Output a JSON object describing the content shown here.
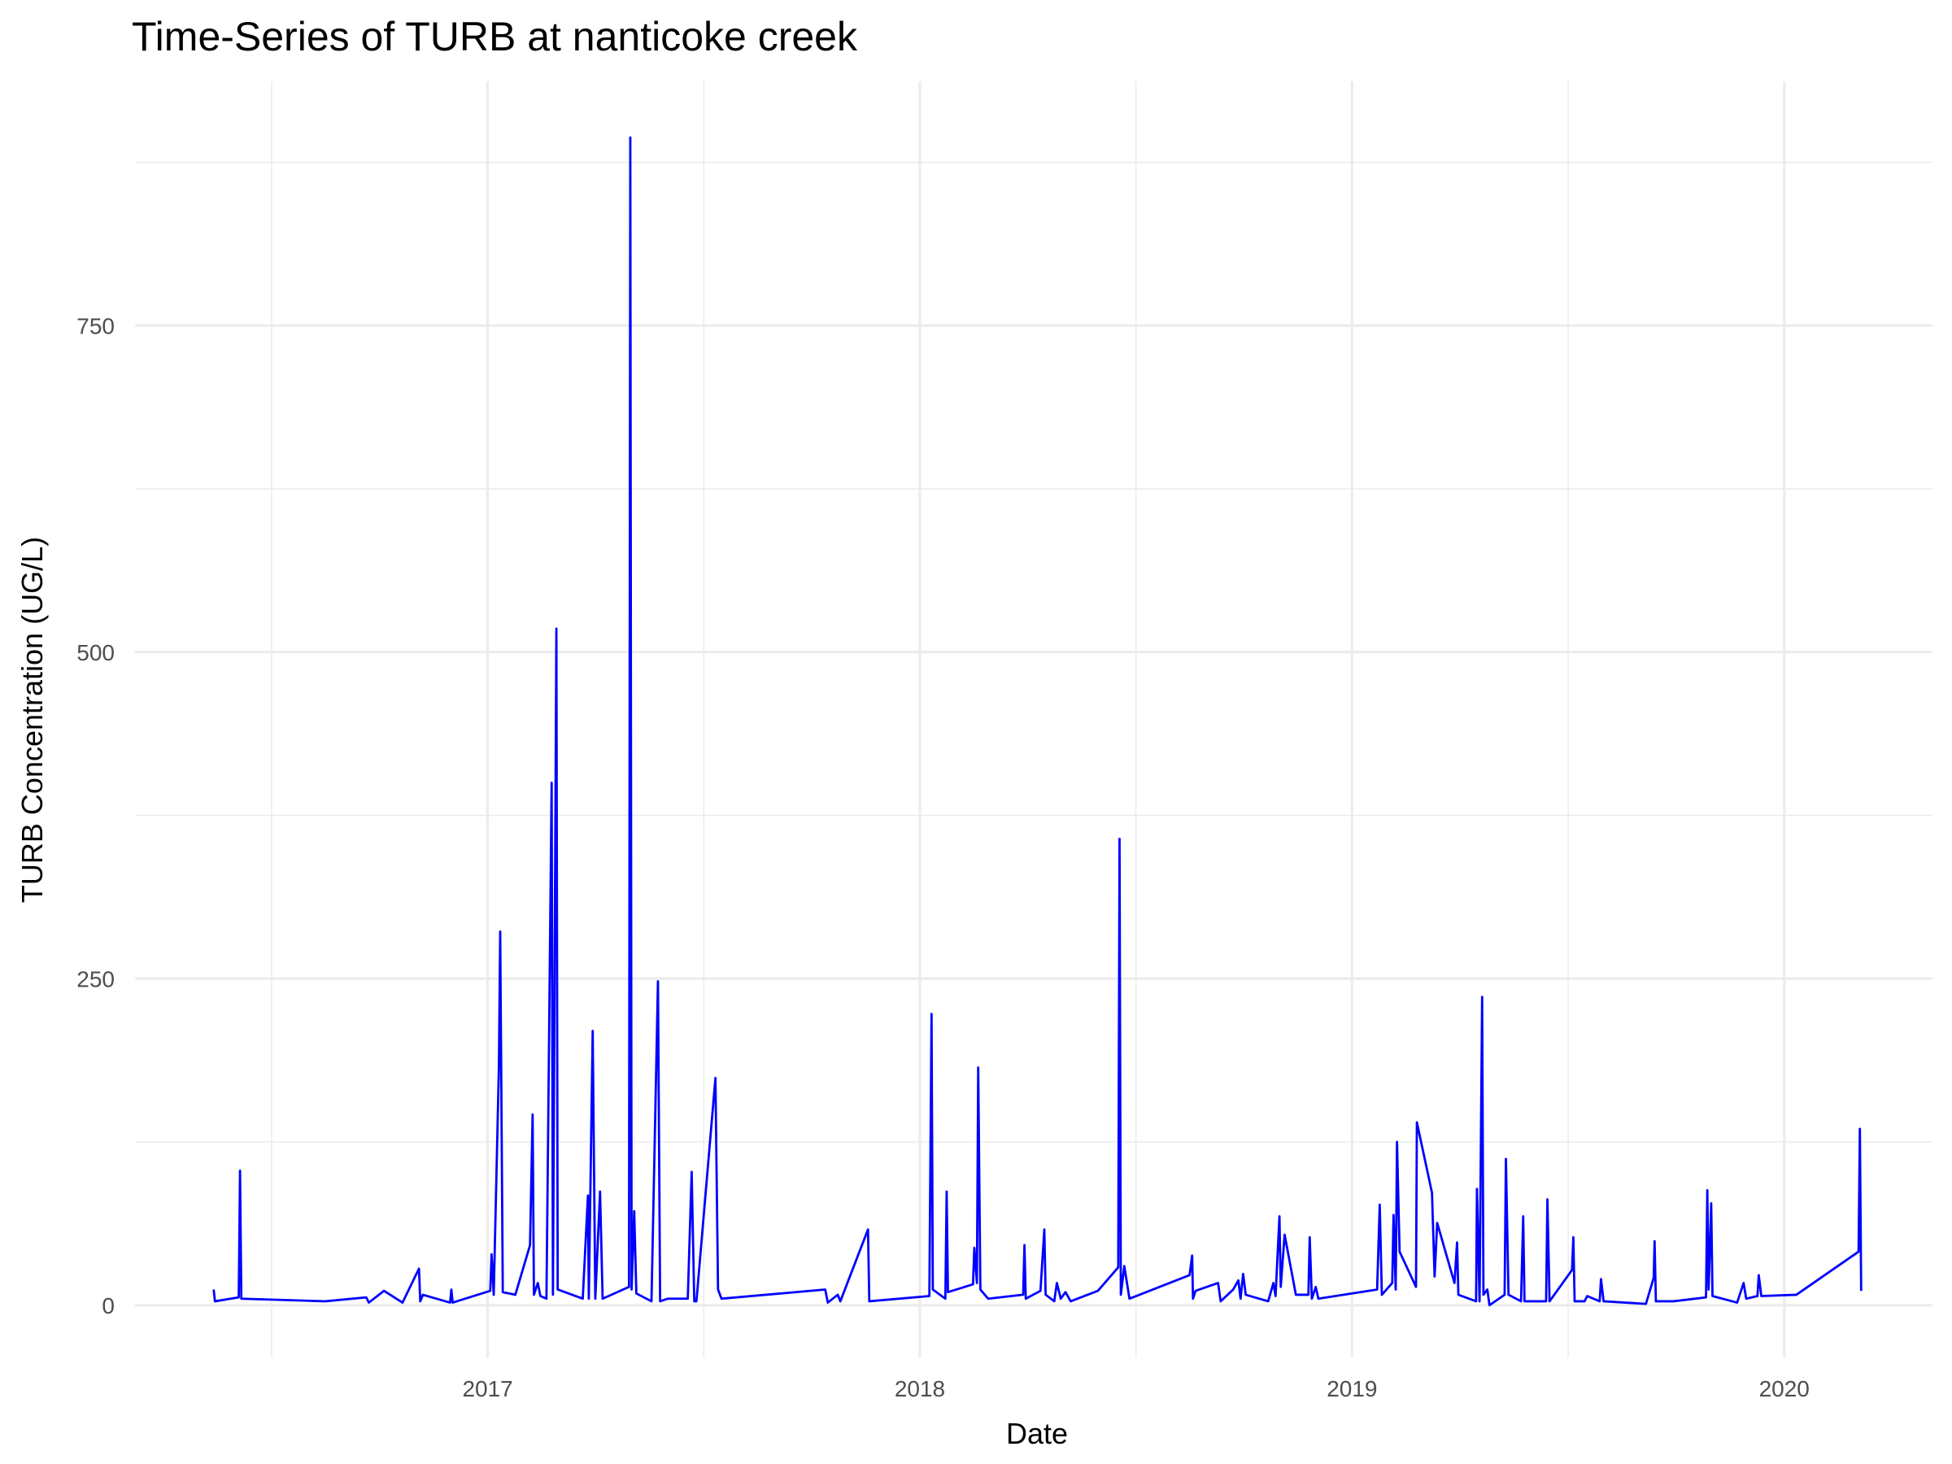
{
  "chart_data": {
    "type": "line",
    "title": "Time-Series of TURB at nanticoke creek",
    "x_label": "Date",
    "y_label": "TURB Concentration (UG/L)",
    "color": "blue",
    "grid": true,
    "xlim": [
      2016.184,
      2020.343
    ],
    "ylim": [
      -40,
      937
    ],
    "xticks": [
      2017,
      2018,
      2019,
      2020
    ],
    "yticks": [
      0,
      250,
      500,
      750
    ],
    "x_minor_grid": [
      2016.5,
      2017.5,
      2018.5,
      2019.5
    ],
    "y_minor_grid": [
      125,
      375,
      625,
      875
    ],
    "x": [
      2016.366,
      2016.369,
      2016.424,
      2016.427,
      2016.43,
      2016.624,
      2016.719,
      2016.725,
      2016.76,
      2016.803,
      2016.841,
      2016.844,
      2016.85,
      2016.913,
      2016.916,
      2016.919,
      2017.006,
      2017.009,
      2017.014,
      2017.026,
      2017.029,
      2017.035,
      2017.064,
      2017.098,
      2017.104,
      2017.107,
      2017.116,
      2017.122,
      2017.136,
      2017.148,
      2017.151,
      2017.159,
      2017.162,
      2017.22,
      2017.232,
      2017.234,
      2017.243,
      2017.249,
      2017.26,
      2017.266,
      2017.327,
      2017.33,
      2017.333,
      2017.339,
      2017.344,
      2017.379,
      2017.394,
      2017.399,
      2017.417,
      2017.463,
      2017.472,
      2017.478,
      2017.483,
      2017.527,
      2017.533,
      2017.541,
      2017.781,
      2017.787,
      2017.81,
      2017.816,
      2017.88,
      2017.883,
      2018.022,
      2018.027,
      2018.03,
      2018.059,
      2018.062,
      2018.065,
      2018.123,
      2018.126,
      2018.132,
      2018.135,
      2018.14,
      2018.158,
      2018.239,
      2018.242,
      2018.245,
      2018.279,
      2018.288,
      2018.291,
      2018.311,
      2018.317,
      2018.326,
      2018.337,
      2018.349,
      2018.412,
      2018.459,
      2018.462,
      2018.465,
      2018.473,
      2018.485,
      2018.624,
      2018.63,
      2018.632,
      2018.638,
      2018.69,
      2018.696,
      2018.725,
      2018.737,
      2018.742,
      2018.748,
      2018.754,
      2018.806,
      2018.818,
      2018.823,
      2018.832,
      2018.835,
      2018.844,
      2018.87,
      2018.899,
      2018.902,
      2018.907,
      2018.916,
      2018.922,
      2019.058,
      2019.064,
      2019.069,
      2019.093,
      2019.096,
      2019.101,
      2019.104,
      2019.11,
      2019.148,
      2019.15,
      2019.185,
      2019.191,
      2019.197,
      2019.237,
      2019.243,
      2019.246,
      2019.287,
      2019.289,
      2019.295,
      2019.301,
      2019.304,
      2019.313,
      2019.318,
      2019.353,
      2019.356,
      2019.362,
      2019.391,
      2019.396,
      2019.399,
      2019.449,
      2019.452,
      2019.457,
      2019.509,
      2019.512,
      2019.515,
      2019.538,
      2019.544,
      2019.573,
      2019.576,
      2019.582,
      2019.68,
      2019.698,
      2019.7,
      2019.703,
      2019.744,
      2019.819,
      2019.822,
      2019.825,
      2019.831,
      2019.834,
      2019.891,
      2019.906,
      2019.912,
      2019.938,
      2019.941,
      2019.947,
      2020.028,
      2020.172,
      2020.175,
      2020.178
    ],
    "values": [
      12,
      3,
      6,
      103,
      5,
      3,
      6,
      2,
      11,
      2,
      28,
      3,
      8,
      2,
      12,
      2,
      11,
      39,
      8,
      183,
      286,
      10,
      8,
      46,
      146,
      8,
      17,
      7,
      5,
      400,
      8,
      518,
      12,
      5,
      84,
      5,
      210,
      5,
      87,
      5,
      14,
      894,
      12,
      72,
      9,
      3,
      248,
      3,
      5,
      5,
      102,
      3,
      3,
      174,
      12,
      5,
      12,
      2,
      8,
      3,
      58,
      3,
      7,
      223,
      12,
      5,
      87,
      10,
      16,
      44,
      17,
      182,
      12,
      5,
      8,
      46,
      5,
      11,
      58,
      8,
      3,
      17,
      5,
      10,
      3,
      11,
      29,
      357,
      8,
      30,
      5,
      23,
      38,
      5,
      11,
      17,
      3,
      12,
      19,
      5,
      24,
      8,
      3,
      17,
      7,
      68,
      14,
      54,
      8,
      8,
      52,
      5,
      14,
      5,
      12,
      77,
      8,
      17,
      69,
      12,
      125,
      41,
      14,
      140,
      86,
      22,
      63,
      17,
      48,
      8,
      3,
      89,
      3,
      236,
      8,
      12,
      0,
      8,
      112,
      8,
      3,
      68,
      3,
      3,
      81,
      3,
      27,
      52,
      3,
      3,
      7,
      3,
      20,
      3,
      1,
      21,
      49,
      3,
      3,
      6,
      88,
      12,
      78,
      7,
      2,
      17,
      5,
      7,
      23,
      7,
      8,
      41,
      135,
      11
    ]
  }
}
